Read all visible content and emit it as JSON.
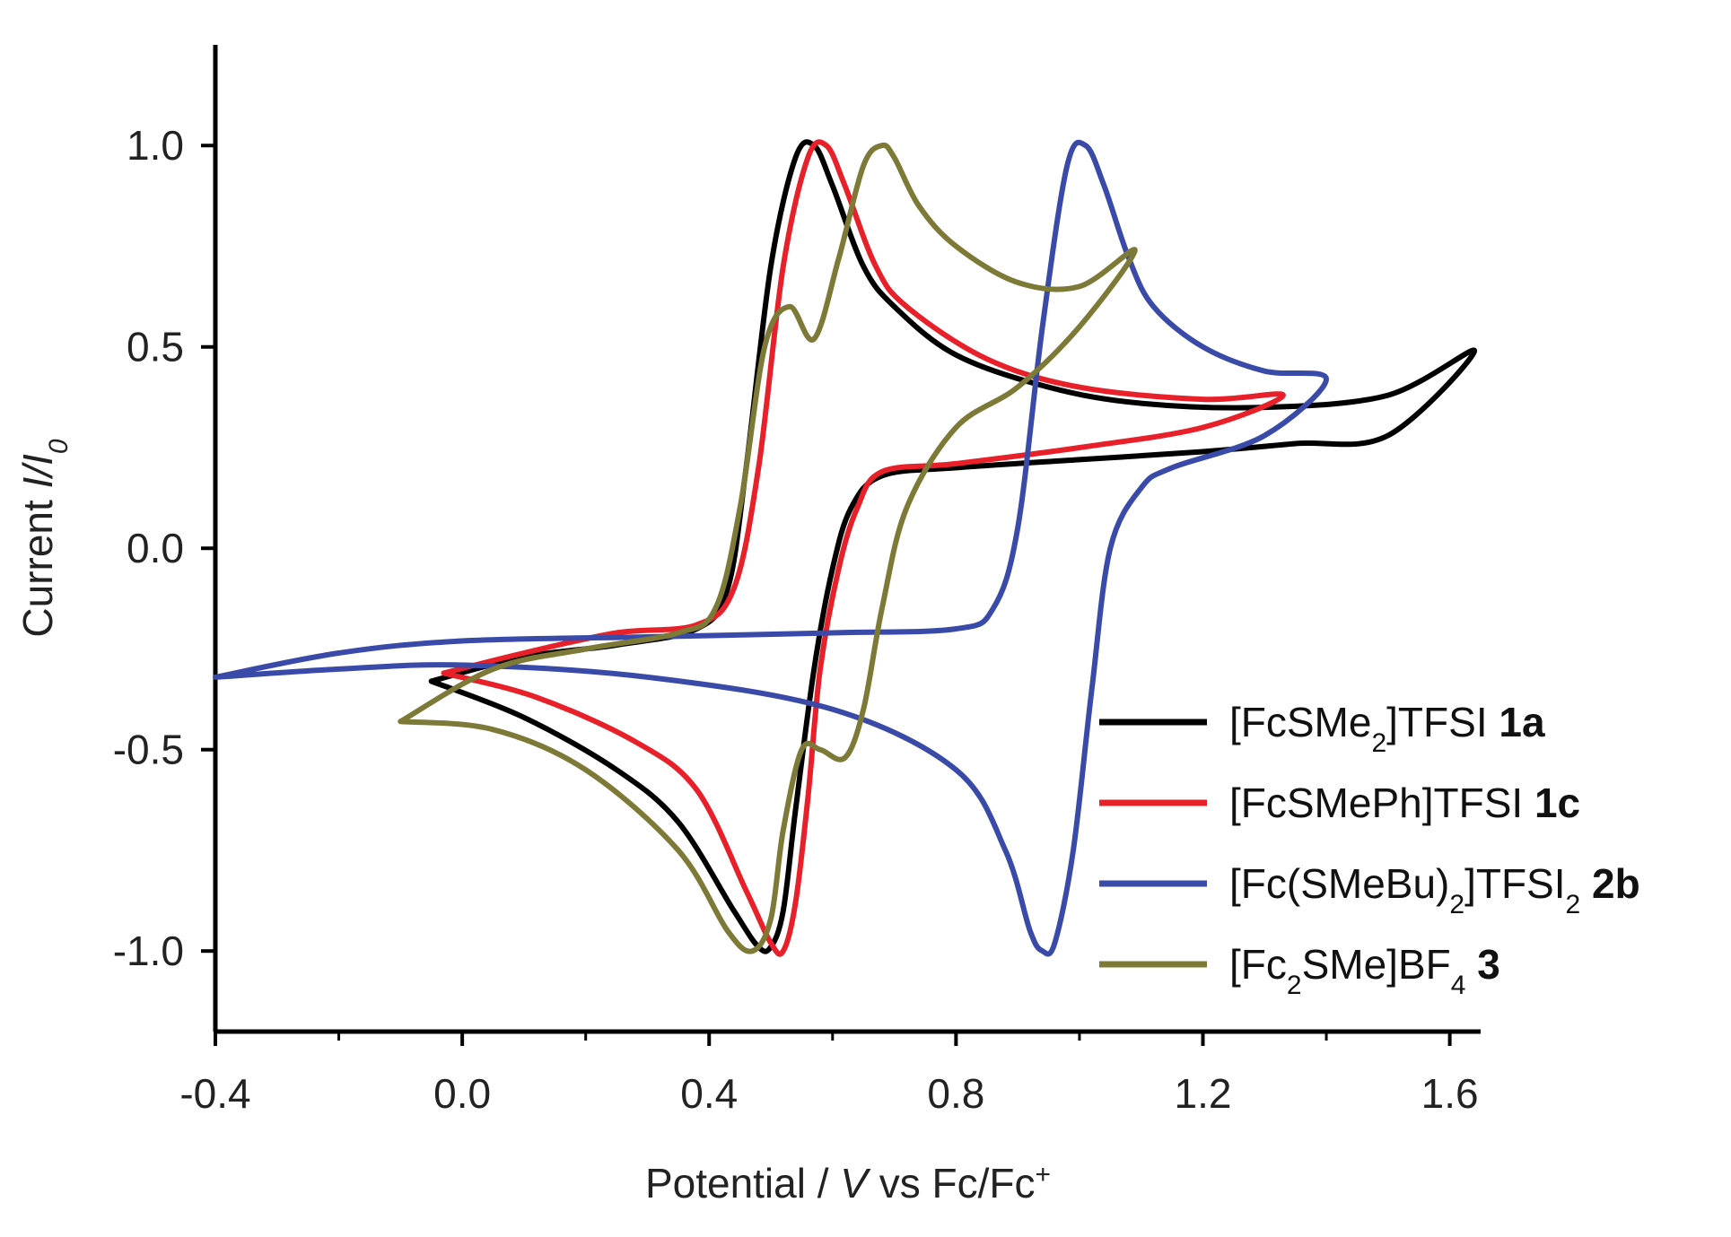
{
  "chart_data": {
    "type": "line",
    "xlabel": {
      "pre": "Potential / ",
      "italic": "V",
      "post": " vs Fc/Fc",
      "sup": "+"
    },
    "ylabel": {
      "pre": "Current ",
      "italic": "I/I",
      "sub": "0"
    },
    "xlim": [
      -0.4,
      1.65
    ],
    "ylim": [
      -1.2,
      1.25
    ],
    "xticks": [
      -0.4,
      0.0,
      0.4,
      0.8,
      1.2,
      1.6
    ],
    "xtick_labels": [
      "-0.4",
      "0.0",
      "0.4",
      "0.8",
      "1.2",
      "1.6"
    ],
    "yticks": [
      -1.0,
      -0.5,
      0.0,
      0.5,
      1.0
    ],
    "ytick_labels": [
      "-1.0",
      "-0.5",
      "0.0",
      "0.5",
      "1.0"
    ],
    "grid": false,
    "legend_position": "bottom-right",
    "series": [
      {
        "name": "[FcSMe2]TFSI 1a",
        "legend": {
          "parts": [
            {
              "t": "[FcSMe"
            },
            {
              "t": "2",
              "s": "sub"
            },
            {
              "t": "]TFSI "
            },
            {
              "t": "1a",
              "s": "bold"
            }
          ]
        },
        "color": "#000000",
        "x": [
          -0.05,
          0.1,
          0.25,
          0.38,
          0.43,
          0.46,
          0.5,
          0.54,
          0.57,
          0.6,
          0.65,
          0.7,
          0.8,
          0.95,
          1.1,
          1.3,
          1.5,
          1.64,
          1.5,
          1.35,
          1.2,
          1.0,
          0.8,
          0.68,
          0.63,
          0.6,
          0.57,
          0.54,
          0.52,
          0.5,
          0.48,
          0.44,
          0.35,
          0.25,
          0.1,
          -0.05
        ],
        "y": [
          -0.33,
          -0.27,
          -0.24,
          -0.2,
          -0.1,
          0.2,
          0.7,
          0.97,
          1.0,
          0.9,
          0.7,
          0.6,
          0.48,
          0.4,
          0.36,
          0.35,
          0.38,
          0.49,
          0.28,
          0.26,
          0.24,
          0.22,
          0.2,
          0.18,
          0.1,
          -0.05,
          -0.3,
          -0.65,
          -0.9,
          -0.99,
          -0.99,
          -0.9,
          -0.68,
          -0.55,
          -0.42,
          -0.33
        ]
      },
      {
        "name": "[FcSMePh]TFSI 1c",
        "legend": {
          "parts": [
            {
              "t": "[FcSMePh]TFSI "
            },
            {
              "t": "1c",
              "s": "bold"
            }
          ]
        },
        "color": "#e8202a",
        "x": [
          -0.03,
          0.1,
          0.25,
          0.38,
          0.44,
          0.48,
          0.52,
          0.56,
          0.59,
          0.62,
          0.67,
          0.72,
          0.85,
          1.0,
          1.2,
          1.33,
          1.2,
          1.0,
          0.8,
          0.68,
          0.64,
          0.61,
          0.58,
          0.56,
          0.54,
          0.52,
          0.5,
          0.46,
          0.38,
          0.28,
          0.12,
          -0.03
        ],
        "y": [
          -0.31,
          -0.26,
          -0.21,
          -0.19,
          -0.1,
          0.2,
          0.7,
          0.97,
          1.0,
          0.9,
          0.7,
          0.6,
          0.47,
          0.4,
          0.37,
          0.38,
          0.3,
          0.25,
          0.21,
          0.19,
          0.1,
          -0.05,
          -0.3,
          -0.62,
          -0.88,
          -1.0,
          -0.98,
          -0.85,
          -0.6,
          -0.48,
          -0.37,
          -0.31
        ]
      },
      {
        "name": "[Fc(SMeBu)2]TFSI2 2b",
        "legend": {
          "parts": [
            {
              "t": "[Fc(SMeBu)"
            },
            {
              "t": "2",
              "s": "sub"
            },
            {
              "t": "]TFSI"
            },
            {
              "t": "2",
              "s": "sub"
            },
            {
              "t": " "
            },
            {
              "t": "2b",
              "s": "bold"
            }
          ]
        },
        "color": "#3a4aa8",
        "x": [
          -0.4,
          -0.2,
          0.0,
          0.3,
          0.6,
          0.8,
          0.86,
          0.9,
          0.94,
          0.98,
          1.01,
          1.04,
          1.08,
          1.12,
          1.2,
          1.3,
          1.4,
          1.3,
          1.15,
          1.1,
          1.05,
          1.02,
          0.99,
          0.96,
          0.94,
          0.92,
          0.88,
          0.8,
          0.6,
          0.3,
          0.0,
          -0.2,
          -0.4
        ],
        "y": [
          -0.32,
          -0.26,
          -0.23,
          -0.22,
          -0.21,
          -0.2,
          -0.15,
          0.05,
          0.55,
          0.95,
          1.0,
          0.9,
          0.72,
          0.6,
          0.5,
          0.44,
          0.42,
          0.28,
          0.2,
          0.15,
          0.0,
          -0.35,
          -0.75,
          -0.98,
          -1.0,
          -0.95,
          -0.75,
          -0.55,
          -0.4,
          -0.32,
          -0.29,
          -0.3,
          -0.32
        ]
      },
      {
        "name": "[Fc2SMe]BF4 3",
        "legend": {
          "parts": [
            {
              "t": "[Fc"
            },
            {
              "t": "2",
              "s": "sub"
            },
            {
              "t": "SMe]BF"
            },
            {
              "t": "4",
              "s": "sub"
            },
            {
              "t": " "
            },
            {
              "t": "3",
              "s": "bold"
            }
          ]
        },
        "color": "#7c7a36",
        "x": [
          -0.1,
          0.05,
          0.2,
          0.35,
          0.41,
          0.45,
          0.49,
          0.53,
          0.57,
          0.61,
          0.65,
          0.68,
          0.7,
          0.74,
          0.8,
          0.9,
          1.0,
          1.09,
          1.0,
          0.9,
          0.8,
          0.72,
          0.68,
          0.65,
          0.62,
          0.58,
          0.55,
          0.52,
          0.5,
          0.47,
          0.43,
          0.35,
          0.2,
          0.05,
          -0.1
        ],
        "y": [
          -0.43,
          -0.3,
          -0.25,
          -0.21,
          -0.15,
          0.1,
          0.5,
          0.6,
          0.52,
          0.72,
          0.95,
          1.0,
          0.97,
          0.85,
          0.75,
          0.66,
          0.65,
          0.74,
          0.55,
          0.4,
          0.3,
          0.1,
          -0.15,
          -0.4,
          -0.52,
          -0.5,
          -0.5,
          -0.7,
          -0.92,
          -1.0,
          -0.95,
          -0.75,
          -0.55,
          -0.45,
          -0.43
        ]
      }
    ]
  }
}
